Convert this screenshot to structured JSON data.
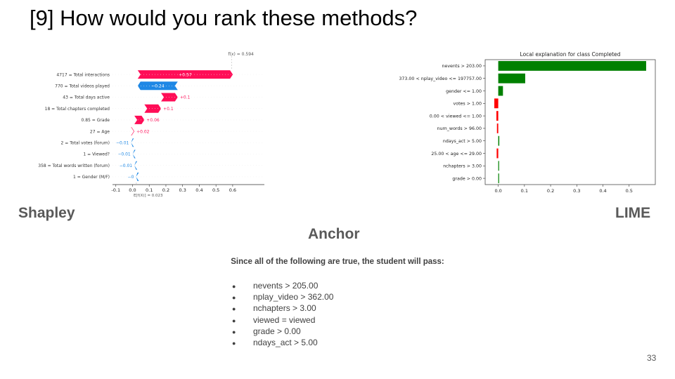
{
  "slide": {
    "title": "[9] How would you rank these methods?",
    "page_number": "33"
  },
  "labels": {
    "shapley": "Shapley",
    "lime": "LIME",
    "anchor": "Anchor"
  },
  "anchor": {
    "caption": "Since all of the following are true, the student will pass:",
    "rules": [
      "nevents > 205.00",
      "nplay_video > 362.00",
      "nchapters > 3.00",
      "viewed = viewed",
      "grade > 0.00",
      "ndays_act > 5.00"
    ]
  },
  "colors": {
    "shap_positive": "#ff0d57",
    "shap_negative": "#1e88e5",
    "lime_positive": "#008000",
    "lime_negative": "#ff0000"
  },
  "chart_data": [
    {
      "type": "bar",
      "subtype": "waterfall",
      "fx_label": "f(x) = 0.594",
      "efx_label": "E[f(X)] = 0.023",
      "base_value": 0.023,
      "final_value": 0.594,
      "features": [
        {
          "label": "4717 = Total interactions",
          "value": 0.57,
          "text": "+0.57"
        },
        {
          "label": "770 = Total videos played",
          "value": -0.24,
          "text": "−0.24"
        },
        {
          "label": "43 = Total days active",
          "value": 0.1,
          "text": "+0.1"
        },
        {
          "label": "18 = Total chapters completed",
          "value": 0.1,
          "text": "+0.1"
        },
        {
          "label": "0.85 = Grade",
          "value": 0.06,
          "text": "+0.06"
        },
        {
          "label": "27 = Age",
          "value": 0.02,
          "text": "+0.02"
        },
        {
          "label": "2 = Total votes (forum)",
          "value": -0.01,
          "text": "−0.01"
        },
        {
          "label": "1 = Viewed?",
          "value": -0.01,
          "text": "−0.01"
        },
        {
          "label": "358 = Total words written (forum)",
          "value": -0.01,
          "text": "−0.01"
        },
        {
          "label": "1 = Gender (M/F)",
          "value": -0.002,
          "text": "−0"
        }
      ],
      "xlim": [
        -0.12,
        0.79
      ],
      "xticks": [
        "-0.1",
        "0.0",
        "0.1",
        "0.2",
        "0.3",
        "0.4",
        "0.5",
        "0.6"
      ],
      "xtick_values": [
        -0.1,
        0.0,
        0.1,
        0.2,
        0.3,
        0.4,
        0.5,
        0.6
      ]
    },
    {
      "type": "bar",
      "orientation": "horizontal",
      "title": "Local explanation for class Completed",
      "categories": [
        "nevents > 203.00",
        "373.00 < nplay_video <= 197757.00",
        "gender <= 1.00",
        "votes > 1.00",
        "0.00 < viewed <= 1.00",
        "num_words > 96.00",
        "ndays_act > 5.00",
        "25.00 < age <= 29.00",
        "nchapters > 3.00",
        "grade > 0.00"
      ],
      "values": [
        0.565,
        0.103,
        0.018,
        -0.015,
        -0.007,
        -0.005,
        0.004,
        -0.006,
        0.003,
        0.002
      ],
      "xlim": [
        -0.05,
        0.6
      ],
      "xticks": [
        "0.0",
        "0.1",
        "0.2",
        "0.3",
        "0.4",
        "0.5"
      ],
      "xtick_values": [
        0.0,
        0.1,
        0.2,
        0.3,
        0.4,
        0.5
      ]
    }
  ]
}
